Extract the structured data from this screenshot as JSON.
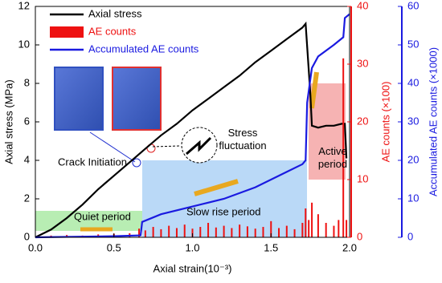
{
  "chart_data": {
    "type": "line",
    "x_label": "Axial strain(10⁻³)",
    "y_label": "Axial stress (MPa)",
    "y2_label": "AE counts (×100)",
    "y3_label": "Accumulated AE counts (×1000)",
    "xlim": [
      0,
      2
    ],
    "xticks": [
      {
        "value": 0,
        "label": "0.0"
      },
      0.5,
      {
        "value": 1,
        "label": "1.0"
      },
      1.5,
      {
        "value": 2,
        "label": "2.0"
      }
    ],
    "ylim": [
      0,
      12
    ],
    "yticks": [
      0,
      2,
      4,
      6,
      8,
      10,
      12
    ],
    "y2lim": [
      0,
      40
    ],
    "y2ticks": [
      0,
      10,
      20,
      30,
      40
    ],
    "y3lim": [
      0,
      60
    ],
    "y3ticks": [
      0,
      10,
      20,
      30,
      40,
      50,
      60
    ],
    "legend": "upper left",
    "series": [
      {
        "name": "Axial stress",
        "type": "line",
        "color": "#000000",
        "axis": "y",
        "x": [
          0,
          0.1,
          0.2,
          0.3,
          0.4,
          0.5,
          0.6,
          0.7,
          0.8,
          0.9,
          1.0,
          1.1,
          1.2,
          1.3,
          1.4,
          1.5,
          1.6,
          1.7,
          1.72,
          1.75,
          1.76,
          1.8,
          1.85,
          1.9,
          1.95,
          1.97,
          1.98
        ],
        "values": [
          0,
          0.4,
          1.0,
          1.7,
          2.5,
          3.2,
          3.9,
          4.6,
          5.3,
          5.9,
          6.6,
          7.2,
          7.8,
          8.4,
          9.1,
          9.7,
          10.3,
          10.9,
          11.1,
          7.5,
          5.8,
          5.7,
          5.8,
          5.8,
          5.9,
          5.9,
          4.1
        ]
      },
      {
        "name": "AE counts",
        "type": "bar",
        "color": "#ee1111",
        "axis": "y2",
        "x": [
          0.1,
          0.2,
          0.3,
          0.4,
          0.5,
          0.6,
          0.66,
          0.7,
          0.75,
          0.8,
          0.85,
          0.9,
          0.95,
          1.0,
          1.05,
          1.1,
          1.15,
          1.2,
          1.25,
          1.3,
          1.35,
          1.4,
          1.45,
          1.5,
          1.55,
          1.6,
          1.65,
          1.7,
          1.72,
          1.74,
          1.76,
          1.8,
          1.85,
          1.9,
          1.93,
          1.96,
          1.98
        ],
        "values": [
          0.3,
          0.4,
          0.3,
          0.5,
          0.6,
          0.7,
          1.5,
          1.2,
          1.8,
          1.4,
          2.0,
          1.6,
          2.2,
          1.5,
          1.8,
          2.5,
          1.7,
          2.0,
          1.6,
          2.2,
          1.9,
          1.5,
          1.8,
          2.8,
          1.6,
          2.0,
          1.4,
          2.5,
          5,
          3,
          6,
          4,
          2.5,
          2,
          3,
          31,
          3
        ]
      },
      {
        "name": "Accumulated AE counts",
        "type": "line",
        "color": "#1a1ae0",
        "axis": "y3",
        "x": [
          0,
          0.5,
          0.67,
          0.68,
          0.8,
          1.0,
          1.2,
          1.4,
          1.6,
          1.7,
          1.72,
          1.73,
          1.76,
          1.8,
          1.9,
          1.96,
          1.97,
          2.0
        ],
        "values": [
          0,
          0.3,
          0.5,
          4,
          6,
          8,
          10,
          13,
          17,
          19,
          20,
          35,
          44,
          47,
          50,
          52,
          57,
          58
        ]
      }
    ],
    "annotations": [
      "Quiet period",
      "Slow rise period",
      "Active period",
      "Crack Initiation",
      "Stress fluctuation"
    ]
  }
}
